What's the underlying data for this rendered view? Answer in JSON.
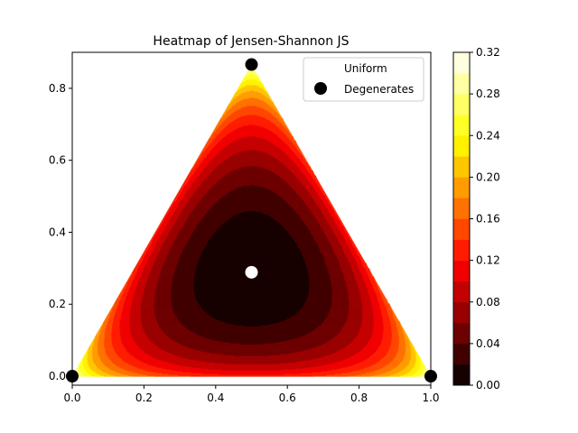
{
  "chart_data": {
    "type": "heatmap",
    "title": "Heatmap of Jensen-Shannon JS",
    "xlabel": "",
    "ylabel": "",
    "xlim": [
      0.0,
      1.0
    ],
    "ylim": [
      -0.025,
      0.9
    ],
    "x_ticks": [
      0.0,
      0.2,
      0.4,
      0.6,
      0.8,
      1.0
    ],
    "x_tick_labels": [
      "0.0",
      "0.2",
      "0.4",
      "0.6",
      "0.8",
      "1.0"
    ],
    "y_ticks": [
      0.0,
      0.2,
      0.4,
      0.6,
      0.8
    ],
    "y_tick_labels": [
      "0.0",
      "0.2",
      "0.4",
      "0.6",
      "0.8"
    ],
    "grid": false,
    "domain": "2-simplex (equilateral triangle)",
    "colormap": "hot",
    "colorbar": {
      "min": 0.0,
      "max": 0.32,
      "levels": [
        0.0,
        0.02,
        0.04,
        0.06,
        0.08,
        0.1,
        0.12,
        0.14,
        0.16,
        0.18,
        0.2,
        0.22,
        0.24,
        0.26,
        0.28,
        0.3,
        0.32
      ],
      "ticks": [
        0.0,
        0.04,
        0.08,
        0.12,
        0.16,
        0.2,
        0.24,
        0.28,
        0.32
      ],
      "tick_labels": [
        "0.00",
        "0.04",
        "0.08",
        "0.12",
        "0.16",
        "0.20",
        "0.24",
        "0.28",
        "0.32"
      ]
    },
    "legend": {
      "placement": "top-right",
      "entries": [
        {
          "label": "Uniform",
          "marker_color": "#ffffff"
        },
        {
          "label": "Degenerates",
          "marker_color": "#000000"
        }
      ]
    },
    "series": [
      {
        "name": "Uniform",
        "marker_color": "#ffffff",
        "points": [
          [
            0.5,
            0.2887
          ]
        ]
      },
      {
        "name": "Degenerates",
        "marker_color": "#000000",
        "points": [
          [
            0.0,
            0.0
          ],
          [
            1.0,
            0.0
          ],
          [
            0.5,
            0.866
          ]
        ]
      }
    ]
  }
}
